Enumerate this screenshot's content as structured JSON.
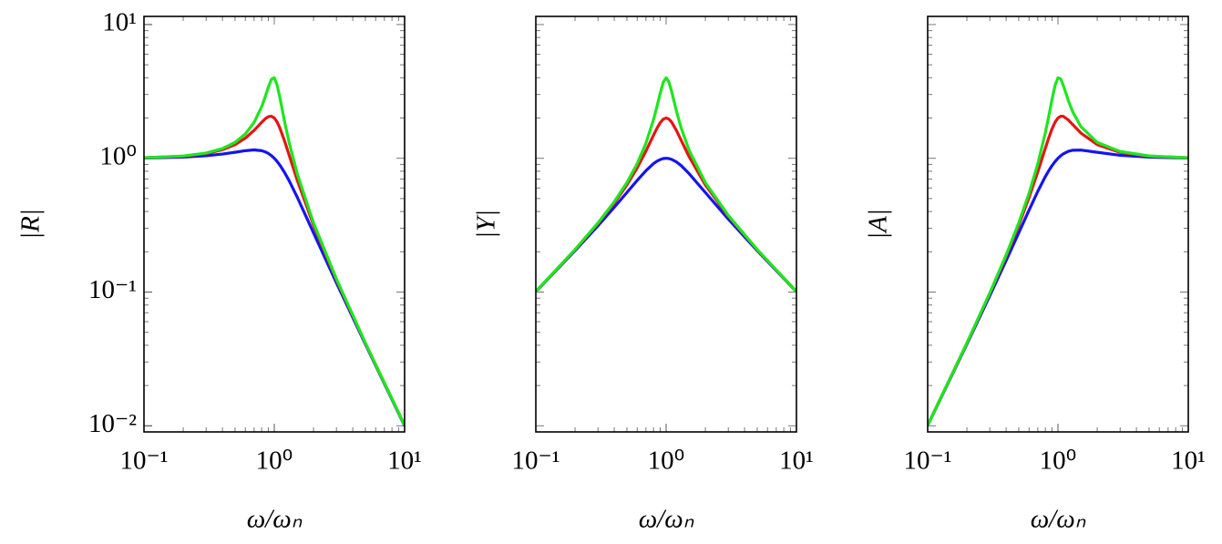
{
  "chart_data": [
    {
      "type": "line",
      "xscale": "log",
      "yscale": "log",
      "xlabel": "ω/ωₙ",
      "ylabel": "|R|",
      "xlim": [
        0.1,
        10
      ],
      "ylim": [
        0.009,
        11.5
      ],
      "xticks": [
        {
          "value": 0.1,
          "label": "10⁻¹"
        },
        {
          "value": 1,
          "label": "10⁰"
        },
        {
          "value": 10,
          "label": "10¹"
        }
      ],
      "yticks": [
        {
          "value": 0.01,
          "label": "10⁻²"
        },
        {
          "value": 0.1,
          "label": "10⁻¹"
        },
        {
          "value": 1,
          "label": "10⁰"
        },
        {
          "value": 10,
          "label": "10¹"
        }
      ],
      "x": [
        0.1,
        0.2,
        0.3,
        0.4,
        0.5,
        0.6,
        0.7,
        0.8,
        0.85,
        0.9,
        0.95,
        1,
        1.05,
        1.1,
        1.2,
        1.3,
        1.5,
        2,
        3,
        5,
        10
      ],
      "series": [
        {
          "color": "#1414f0",
          "values": [
            1.005,
            1.02,
            1.044,
            1.075,
            1.109,
            1.14,
            1.155,
            1.14,
            1.118,
            1.087,
            1.047,
            1,
            0.948,
            0.893,
            0.782,
            0.68,
            0.512,
            0.277,
            0.117,
            0.0408,
            0.01
          ]
        },
        {
          "color": "#e61414",
          "values": [
            1.009,
            1.036,
            1.084,
            1.158,
            1.265,
            1.415,
            1.617,
            1.858,
            1.97,
            2.047,
            2.062,
            2,
            1.87,
            1.699,
            1.344,
            1.055,
            0.686,
            0.316,
            0.123,
            0.0414,
            0.0101
          ]
        },
        {
          "color": "#1ee61e",
          "values": [
            1.01,
            1.04,
            1.095,
            1.182,
            1.315,
            1.521,
            1.855,
            2.428,
            2.861,
            3.396,
            3.895,
            4,
            3.549,
            2.89,
            1.878,
            1.311,
            0.766,
            0.329,
            0.125,
            0.0416,
            0.0101
          ]
        }
      ]
    },
    {
      "type": "line",
      "xscale": "log",
      "yscale": "log",
      "xlabel": "ω/ωₙ",
      "ylabel": "|Y|",
      "xlim": [
        0.1,
        10
      ],
      "ylim": [
        0.009,
        11.5
      ],
      "xticks": [
        {
          "value": 0.1,
          "label": "10⁻¹"
        },
        {
          "value": 1,
          "label": "10⁰"
        },
        {
          "value": 10,
          "label": "10¹"
        }
      ],
      "x": [
        0.1,
        0.2,
        0.3,
        0.4,
        0.5,
        0.6,
        0.7,
        0.8,
        0.85,
        0.9,
        0.95,
        1,
        1.05,
        1.1,
        1.2,
        1.3,
        1.5,
        2,
        3,
        5,
        10
      ],
      "series": [
        {
          "color": "#1414f0",
          "values": [
            0.1005,
            0.204,
            0.313,
            0.43,
            0.555,
            0.684,
            0.808,
            0.912,
            0.95,
            0.978,
            0.995,
            1,
            0.995,
            0.982,
            0.939,
            0.884,
            0.768,
            0.555,
            0.351,
            0.204,
            0.1005
          ]
        },
        {
          "color": "#e61414",
          "values": [
            0.1009,
            0.207,
            0.325,
            0.463,
            0.632,
            0.849,
            1.132,
            1.487,
            1.675,
            1.842,
            1.959,
            2,
            1.963,
            1.868,
            1.613,
            1.371,
            1.029,
            0.632,
            0.369,
            0.207,
            0.101
          ]
        },
        {
          "color": "#1ee61e",
          "values": [
            0.101,
            0.208,
            0.329,
            0.473,
            0.658,
            0.913,
            1.298,
            1.943,
            2.432,
            3.056,
            3.7,
            4,
            3.726,
            3.179,
            2.254,
            1.704,
            1.149,
            0.658,
            0.374,
            0.208,
            0.101
          ]
        }
      ]
    },
    {
      "type": "line",
      "xscale": "log",
      "yscale": "log",
      "xlabel": "ω/ωₙ",
      "ylabel": "|A|",
      "xlim": [
        0.1,
        10
      ],
      "ylim": [
        0.009,
        11.5
      ],
      "xticks": [
        {
          "value": 0.1,
          "label": "10⁻¹"
        },
        {
          "value": 1,
          "label": "10⁰"
        },
        {
          "value": 10,
          "label": "10¹"
        }
      ],
      "x": [
        0.1,
        0.2,
        0.3,
        0.4,
        0.5,
        0.6,
        0.7,
        0.8,
        0.85,
        0.9,
        0.95,
        1,
        1.05,
        1.1,
        1.2,
        1.3,
        1.5,
        2,
        3,
        5,
        10
      ],
      "series": [
        {
          "color": "#1414f0",
          "values": [
            0.01005,
            0.0408,
            0.094,
            0.172,
            0.277,
            0.41,
            0.566,
            0.73,
            0.808,
            0.881,
            0.945,
            1,
            1.045,
            1.08,
            1.127,
            1.149,
            1.152,
            1.109,
            1.053,
            1.02,
            1.005
          ]
        },
        {
          "color": "#e61414",
          "values": [
            0.01009,
            0.0414,
            0.0976,
            0.185,
            0.316,
            0.509,
            0.792,
            1.189,
            1.423,
            1.658,
            1.861,
            2,
            2.062,
            2.056,
            1.935,
            1.783,
            1.544,
            1.265,
            1.107,
            1.036,
            1.009
          ]
        },
        {
          "color": "#1ee61e",
          "values": [
            0.0101,
            0.0416,
            0.0986,
            0.189,
            0.329,
            0.548,
            0.909,
            1.554,
            2.067,
            2.751,
            3.515,
            4,
            3.913,
            3.497,
            2.704,
            2.216,
            1.724,
            1.315,
            1.124,
            1.041,
            1.01
          ]
        }
      ]
    }
  ]
}
